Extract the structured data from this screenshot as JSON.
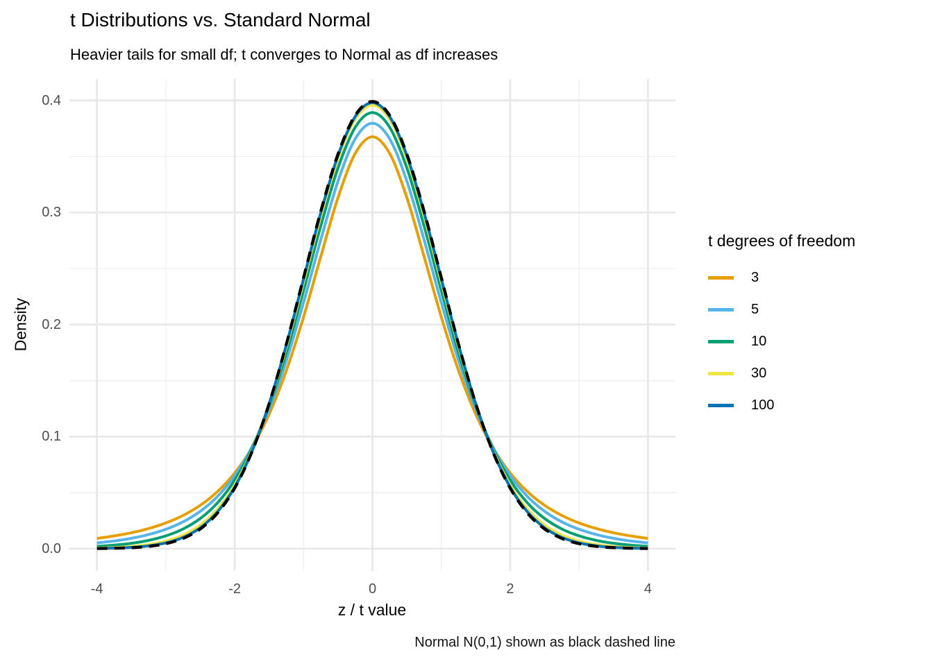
{
  "title": "t Distributions vs. Standard Normal",
  "subtitle": "Heavier tails for small df; t converges to Normal as df increases",
  "caption": "Normal N(0,1) shown as black dashed line",
  "axes": {
    "x": {
      "label": "z / t value",
      "ticks": [
        -4,
        -2,
        0,
        2,
        4
      ],
      "tick_labels": [
        "-4",
        "-2",
        "0",
        "2",
        "4"
      ],
      "minor_ticks": [
        -3,
        -1,
        1,
        3
      ],
      "lim": [
        -4.4,
        4.4
      ]
    },
    "y": {
      "label": "Density",
      "ticks": [
        0,
        0.1,
        0.2,
        0.3,
        0.4
      ],
      "tick_labels": [
        "0.0",
        "0.1",
        "0.2",
        "0.3",
        "0.4"
      ],
      "minor_ticks": [
        0.05,
        0.15,
        0.25,
        0.35
      ],
      "lim": [
        -0.0199,
        0.419
      ]
    }
  },
  "legend": {
    "title": "t degrees of freedom",
    "items": [
      {
        "label": "3",
        "color": "#E69F00"
      },
      {
        "label": "5",
        "color": "#56B4E9"
      },
      {
        "label": "10",
        "color": "#009E73"
      },
      {
        "label": "30",
        "color": "#F0E442"
      },
      {
        "label": "100",
        "color": "#0072B2"
      }
    ]
  },
  "style_colors": {
    "grid_major": "#E8E8E8",
    "grid_minor": "#EFEFEF",
    "tick_text": "#4d4d4d",
    "normal_line": "#000000"
  },
  "chart_data": {
    "type": "line",
    "title": "t Distributions vs. Standard Normal",
    "subtitle": "Heavier tails for small df; t converges to Normal as df increases",
    "xlabel": "z / t value",
    "ylabel": "Density",
    "xlim": [
      -4.4,
      4.4
    ],
    "ylim": [
      -0.0199,
      0.419
    ],
    "grid": true,
    "legend_position": "right",
    "legend_title": "t degrees of freedom",
    "annotation": "Normal N(0,1) shown as black dashed line",
    "x": [
      -4,
      -3.75,
      -3.5,
      -3.25,
      -3,
      -2.75,
      -2.5,
      -2.25,
      -2,
      -1.75,
      -1.5,
      -1.25,
      -1,
      -0.75,
      -0.5,
      -0.25,
      0,
      0.25,
      0.5,
      0.75,
      1,
      1.25,
      1.5,
      1.75,
      2,
      2.25,
      2.5,
      2.75,
      3,
      3.25,
      3.5,
      3.75,
      4
    ],
    "series": [
      {
        "name": "3",
        "color": "#E69F00",
        "dashed": false,
        "values": [
          0.00916,
          0.01136,
          0.01422,
          0.01798,
          0.02297,
          0.02965,
          0.03866,
          0.05089,
          0.06751,
          0.09001,
          0.12002,
          0.15891,
          0.20675,
          0.26065,
          0.31318,
          0.3527,
          0.36755,
          0.3527,
          0.31318,
          0.26065,
          0.20675,
          0.15891,
          0.12002,
          0.09001,
          0.06751,
          0.05089,
          0.03866,
          0.02965,
          0.02297,
          0.01798,
          0.01422,
          0.01136,
          0.00916
        ]
      },
      {
        "name": "5",
        "color": "#56B4E9",
        "dashed": false,
        "values": [
          0.00512,
          0.00685,
          0.00924,
          0.01259,
          0.01729,
          0.02393,
          0.03333,
          0.04657,
          0.06509,
          0.09054,
          0.12452,
          0.16787,
          0.21968,
          0.27569,
          0.32792,
          0.36572,
          0.37961,
          0.36572,
          0.32792,
          0.27569,
          0.21968,
          0.16787,
          0.12452,
          0.09054,
          0.06509,
          0.04657,
          0.03333,
          0.02393,
          0.01729,
          0.01259,
          0.00924,
          0.00685,
          0.00512
        ]
      },
      {
        "name": "10",
        "color": "#009E73",
        "dashed": false,
        "values": [
          0.00203,
          0.00311,
          0.00478,
          0.00738,
          0.0114,
          0.01757,
          0.02693,
          0.04089,
          0.06115,
          0.0895,
          0.12744,
          0.17508,
          0.23036,
          0.28798,
          0.33969,
          0.376,
          0.38911,
          0.376,
          0.33969,
          0.28798,
          0.23036,
          0.17508,
          0.12744,
          0.0895,
          0.06115,
          0.04089,
          0.02693,
          0.01757,
          0.0114,
          0.00738,
          0.00478,
          0.00311,
          0.00203
        ]
      },
      {
        "name": "30",
        "color": "#F0E442",
        "dashed": false,
        "values": [
          0.00053,
          0.00102,
          0.00196,
          0.00369,
          0.00678,
          0.01213,
          0.02106,
          0.03528,
          0.05685,
          0.0877,
          0.12896,
          0.18008,
          0.238,
          0.29664,
          0.34787,
          0.38306,
          0.39562,
          0.38306,
          0.34787,
          0.29664,
          0.238,
          0.18008,
          0.12896,
          0.0877,
          0.05685,
          0.03528,
          0.02106,
          0.01213,
          0.00678,
          0.00369,
          0.00196,
          0.00102,
          0.00053
        ]
      },
      {
        "name": "100",
        "color": "#0072B2",
        "dashed": false,
        "values": [
          0.00022,
          0.00052,
          0.00116,
          0.0025,
          0.00513,
          0.01002,
          0.01863,
          0.03286,
          0.05491,
          0.08674,
          0.12937,
          0.18188,
          0.24077,
          0.29979,
          0.35081,
          0.38559,
          0.39795,
          0.38559,
          0.35081,
          0.29979,
          0.24077,
          0.18188,
          0.12937,
          0.08674,
          0.05491,
          0.03286,
          0.01863,
          0.01002,
          0.00513,
          0.0025,
          0.00116,
          0.00052,
          0.00022
        ]
      },
      {
        "name": "Normal N(0,1)",
        "color": "#000000",
        "dashed": true,
        "values": [
          0.00013,
          0.00035,
          0.00087,
          0.00203,
          0.00443,
          0.00909,
          0.01753,
          0.03174,
          0.05399,
          0.08628,
          0.12952,
          0.18265,
          0.24197,
          0.30114,
          0.35207,
          0.38667,
          0.39894,
          0.38667,
          0.35207,
          0.30114,
          0.24197,
          0.18265,
          0.12952,
          0.08628,
          0.05399,
          0.03174,
          0.01753,
          0.00909,
          0.00443,
          0.00203,
          0.00087,
          0.00035,
          0.00013
        ]
      }
    ]
  }
}
